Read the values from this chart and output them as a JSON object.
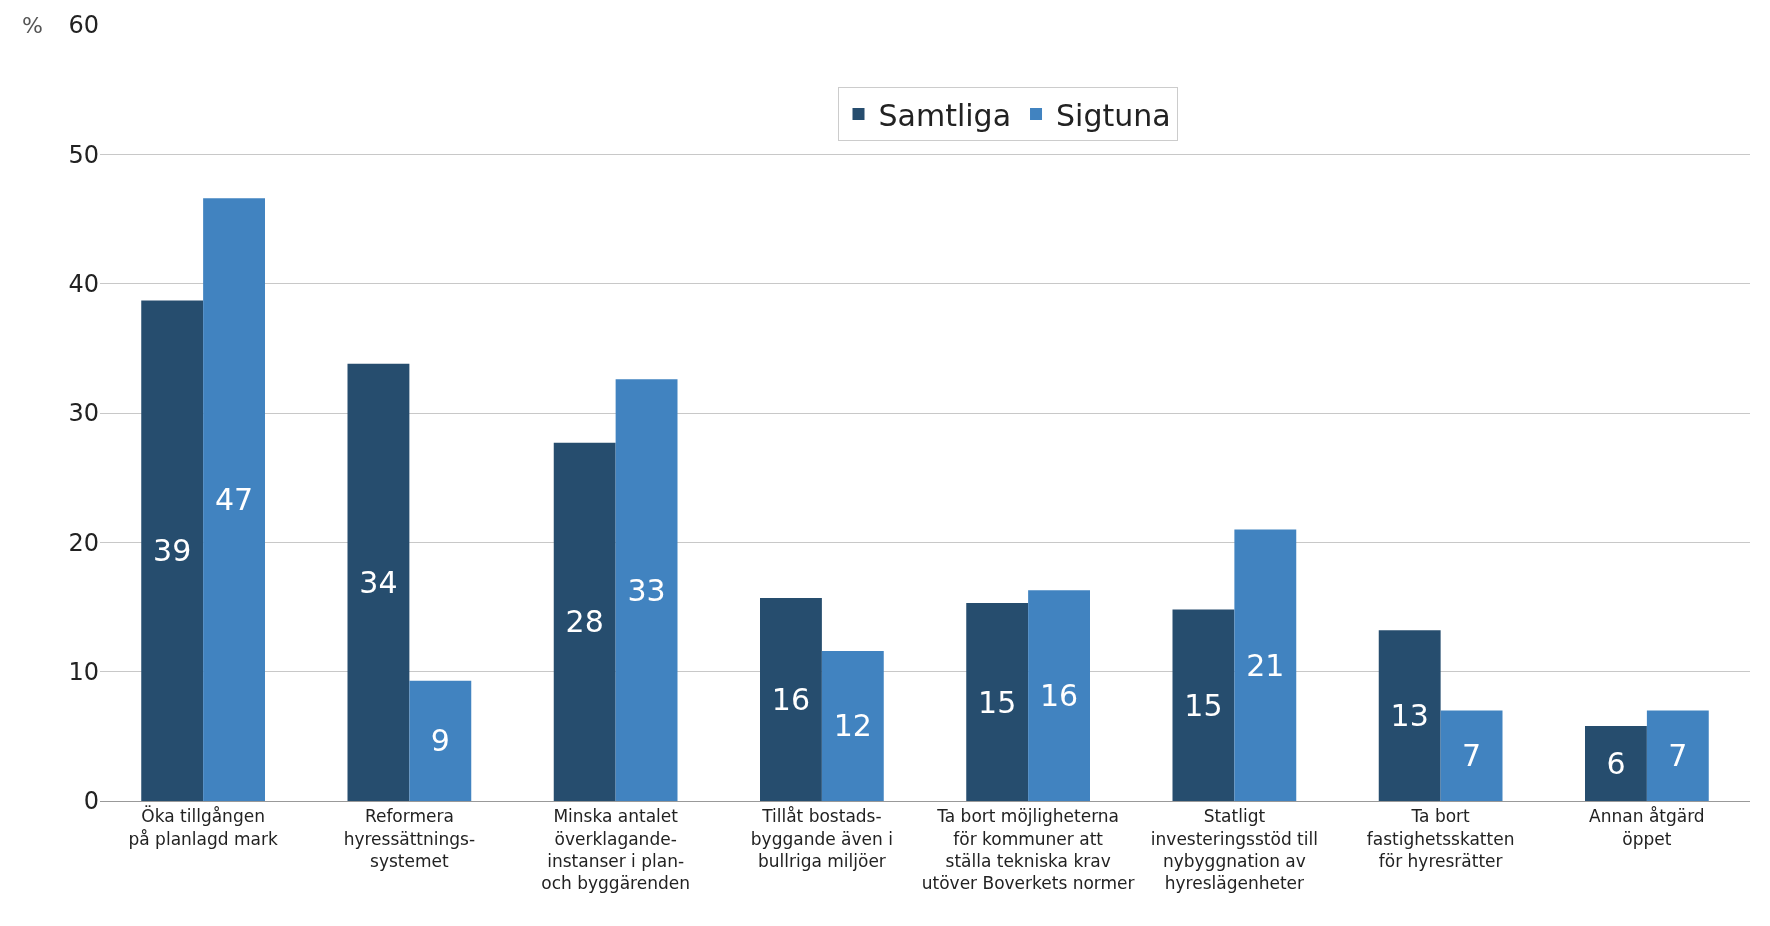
{
  "chart_data": {
    "type": "bar",
    "ylabel": "%",
    "categories": [
      "Öka tillgången\npå planlagd mark",
      "Reformera\nhyressättnings-\nsystemet",
      "Minska antalet\növerklagande-\ninstanser i plan-\noch byggärenden",
      "Tillåt bostads-\nbyggande även i\nbullriga miljöer",
      "Ta bort möjligheterna\nför kommuner att\nställa tekniska krav\nutöver Boverkets normer",
      "Statligt\ninvesteringsstöd till\nnybyggnation av\nhyreslägenheter",
      "Ta bort\nfastighetsskatten\nför hyresrätter",
      "Annan åtgärd\nöppet"
    ],
    "series": [
      {
        "name": "Samtliga",
        "color": "#264d6e",
        "values": [
          38.7,
          33.8,
          27.7,
          15.7,
          15.3,
          14.8,
          13.2,
          5.8
        ],
        "value_labels": [
          "39",
          "34",
          "28",
          "16",
          "15",
          "15",
          "13",
          "6"
        ]
      },
      {
        "name": "Sigtuna",
        "color": "#4183c0",
        "values": [
          46.6,
          9.3,
          32.6,
          11.6,
          16.3,
          21.0,
          7.0,
          7.0
        ],
        "value_labels": [
          "47",
          "9",
          "33",
          "12",
          "16",
          "21",
          "7",
          "7"
        ]
      }
    ],
    "ylim": [
      0,
      60
    ],
    "yticks": [
      0,
      10,
      20,
      30,
      40,
      50,
      60
    ],
    "grid": "y",
    "legend": "top"
  }
}
